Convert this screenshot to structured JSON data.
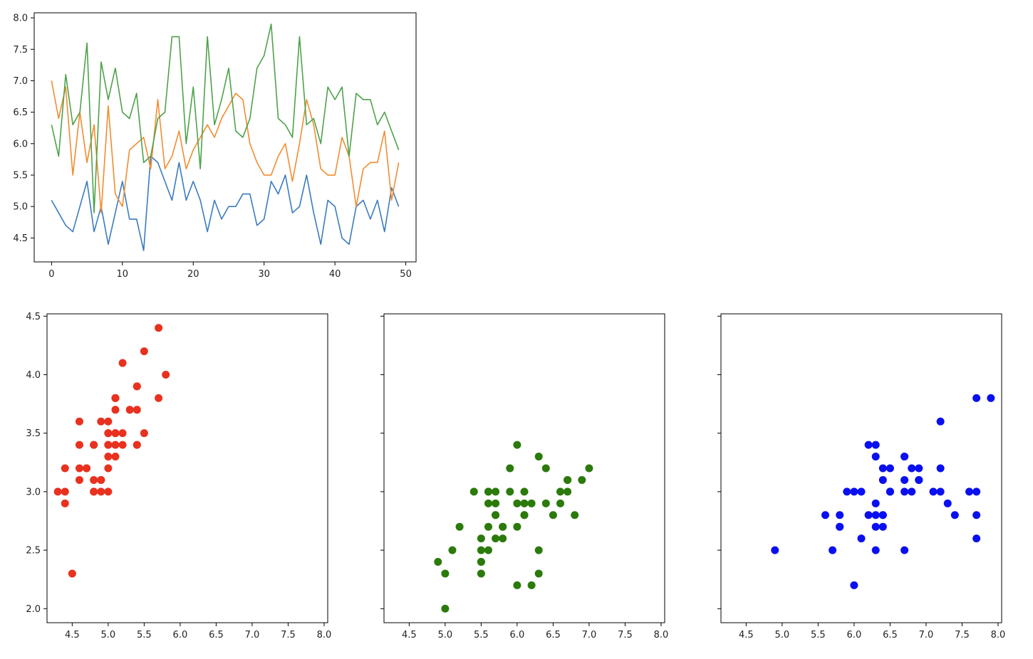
{
  "chart_data": [
    {
      "type": "line",
      "x": [
        0,
        1,
        2,
        3,
        4,
        5,
        6,
        7,
        8,
        9,
        10,
        11,
        12,
        13,
        14,
        15,
        16,
        17,
        18,
        19,
        20,
        21,
        22,
        23,
        24,
        25,
        26,
        27,
        28,
        29,
        30,
        31,
        32,
        33,
        34,
        35,
        36,
        37,
        38,
        39,
        40,
        41,
        42,
        43,
        44,
        45,
        46,
        47,
        48,
        49
      ],
      "series": [
        {
          "color": "#3a7bbf",
          "values": [
            5.1,
            4.9,
            4.7,
            4.6,
            5.0,
            5.4,
            4.6,
            5.0,
            4.4,
            4.9,
            5.4,
            4.8,
            4.8,
            4.3,
            5.8,
            5.7,
            5.4,
            5.1,
            5.7,
            5.1,
            5.4,
            5.1,
            4.6,
            5.1,
            4.8,
            5.0,
            5.0,
            5.2,
            5.2,
            4.7,
            4.8,
            5.4,
            5.2,
            5.5,
            4.9,
            5.0,
            5.5,
            4.9,
            4.4,
            5.1,
            5.0,
            4.5,
            4.4,
            5.0,
            5.1,
            4.8,
            5.1,
            4.6,
            5.3,
            5.0
          ]
        },
        {
          "color": "#f28c30",
          "values": [
            7.0,
            6.4,
            6.9,
            5.5,
            6.5,
            5.7,
            6.3,
            4.9,
            6.6,
            5.2,
            5.0,
            5.9,
            6.0,
            6.1,
            5.6,
            6.7,
            5.6,
            5.8,
            6.2,
            5.6,
            5.9,
            6.1,
            6.3,
            6.1,
            6.4,
            6.6,
            6.8,
            6.7,
            6.0,
            5.7,
            5.5,
            5.5,
            5.8,
            6.0,
            5.4,
            6.0,
            6.7,
            6.3,
            5.6,
            5.5,
            5.5,
            6.1,
            5.8,
            5.0,
            5.6,
            5.7,
            5.7,
            6.2,
            5.1,
            5.7
          ]
        },
        {
          "color": "#4ea24a",
          "values": [
            6.3,
            5.8,
            7.1,
            6.3,
            6.5,
            7.6,
            4.9,
            7.3,
            6.7,
            7.2,
            6.5,
            6.4,
            6.8,
            5.7,
            5.8,
            6.4,
            6.5,
            7.7,
            7.7,
            6.0,
            6.9,
            5.6,
            7.7,
            6.3,
            6.7,
            7.2,
            6.2,
            6.1,
            6.4,
            7.2,
            7.4,
            7.9,
            6.4,
            6.3,
            6.1,
            7.7,
            6.3,
            6.4,
            6.0,
            6.9,
            6.7,
            6.9,
            5.8,
            6.8,
            6.7,
            6.7,
            6.3,
            6.5,
            6.2,
            5.9
          ]
        }
      ],
      "xlim": [
        -2.45,
        51.45
      ],
      "ylim": [
        4.12,
        8.08
      ],
      "xticks": [
        "0",
        "10",
        "20",
        "30",
        "40",
        "50"
      ],
      "xtick_values": [
        0,
        10,
        20,
        30,
        40,
        50
      ],
      "yticks": [
        "4.5",
        "5.0",
        "5.5",
        "6.0",
        "6.5",
        "7.0",
        "7.5",
        "8.0"
      ],
      "ytick_values": [
        4.5,
        5.0,
        5.5,
        6.0,
        6.5,
        7.0,
        7.5,
        8.0
      ]
    },
    {
      "type": "scatter",
      "color": "#e8311f",
      "x": [
        5.1,
        4.9,
        4.7,
        4.6,
        5.0,
        5.4,
        4.6,
        5.0,
        4.4,
        4.9,
        5.4,
        4.8,
        4.8,
        4.3,
        5.8,
        5.7,
        5.4,
        5.1,
        5.7,
        5.1,
        5.4,
        5.1,
        4.6,
        5.1,
        4.8,
        5.0,
        5.0,
        5.2,
        5.2,
        4.7,
        4.8,
        5.4,
        5.2,
        5.5,
        4.9,
        5.0,
        5.5,
        4.9,
        4.4,
        5.1,
        5.0,
        4.5,
        4.4,
        5.0,
        5.1,
        4.8,
        5.1,
        4.6,
        5.3,
        5.0
      ],
      "y": [
        3.5,
        3.0,
        3.2,
        3.1,
        3.6,
        3.9,
        3.4,
        3.4,
        2.9,
        3.1,
        3.7,
        3.4,
        3.0,
        3.0,
        4.0,
        4.4,
        3.9,
        3.5,
        3.8,
        3.8,
        3.4,
        3.7,
        3.6,
        3.3,
        3.4,
        3.0,
        3.4,
        3.5,
        3.4,
        3.2,
        3.1,
        3.4,
        4.1,
        4.2,
        3.1,
        3.2,
        3.5,
        3.6,
        3.0,
        3.4,
        3.5,
        2.3,
        3.2,
        3.5,
        3.8,
        3.0,
        3.8,
        3.2,
        3.7,
        3.3
      ],
      "xlim": [
        4.15,
        8.05
      ],
      "ylim": [
        1.88,
        4.52
      ],
      "xticks": [
        "4.5",
        "5.0",
        "5.5",
        "6.0",
        "6.5",
        "7.0",
        "7.5",
        "8.0"
      ],
      "xtick_values": [
        4.5,
        5.0,
        5.5,
        6.0,
        6.5,
        7.0,
        7.5,
        8.0
      ],
      "yticks": [
        "2.0",
        "2.5",
        "3.0",
        "3.5",
        "4.0",
        "4.5"
      ],
      "ytick_values": [
        2.0,
        2.5,
        3.0,
        3.5,
        4.0,
        4.5
      ]
    },
    {
      "type": "scatter",
      "color": "#2b7a0b",
      "x": [
        7.0,
        6.4,
        6.9,
        5.5,
        6.5,
        5.7,
        6.3,
        4.9,
        6.6,
        5.2,
        5.0,
        5.9,
        6.0,
        6.1,
        5.6,
        6.7,
        5.6,
        5.8,
        6.2,
        5.6,
        5.9,
        6.1,
        6.3,
        6.1,
        6.4,
        6.6,
        6.8,
        6.7,
        6.0,
        5.7,
        5.5,
        5.5,
        5.8,
        6.0,
        5.4,
        6.0,
        6.7,
        6.3,
        5.6,
        5.5,
        5.5,
        6.1,
        5.8,
        5.0,
        5.6,
        5.7,
        5.7,
        6.2,
        5.1,
        5.7
      ],
      "y": [
        3.2,
        3.2,
        3.1,
        2.3,
        2.8,
        2.8,
        3.3,
        2.4,
        2.9,
        2.7,
        2.0,
        3.0,
        2.2,
        2.9,
        2.9,
        3.1,
        3.0,
        2.7,
        2.2,
        2.5,
        3.2,
        2.8,
        2.5,
        2.8,
        2.9,
        3.0,
        2.8,
        3.0,
        2.9,
        2.6,
        2.4,
        2.4,
        2.7,
        2.7,
        3.0,
        3.4,
        3.1,
        2.3,
        3.0,
        2.5,
        2.6,
        3.0,
        2.6,
        2.3,
        2.7,
        3.0,
        2.9,
        2.9,
        2.5,
        2.8
      ],
      "xlim": [
        4.15,
        8.05
      ],
      "ylim": [
        1.88,
        4.52
      ],
      "xticks": [
        "4.5",
        "5.0",
        "5.5",
        "6.0",
        "6.5",
        "7.0",
        "7.5",
        "8.0"
      ],
      "xtick_values": [
        4.5,
        5.0,
        5.5,
        6.0,
        6.5,
        7.0,
        7.5,
        8.0
      ],
      "ytick_values": [
        2.0,
        2.5,
        3.0,
        3.5,
        4.0,
        4.5
      ]
    },
    {
      "type": "scatter",
      "color": "#0a0ff0",
      "x": [
        6.3,
        5.8,
        7.1,
        6.3,
        6.5,
        7.6,
        4.9,
        7.3,
        6.7,
        7.2,
        6.5,
        6.4,
        6.8,
        5.7,
        5.8,
        6.4,
        6.5,
        7.7,
        7.7,
        6.0,
        6.9,
        5.6,
        7.7,
        6.3,
        6.7,
        7.2,
        6.2,
        6.1,
        6.4,
        7.2,
        7.4,
        7.9,
        6.4,
        6.3,
        6.1,
        7.7,
        6.3,
        6.4,
        6.0,
        6.9,
        6.7,
        6.9,
        5.8,
        6.8,
        6.7,
        6.7,
        6.3,
        6.5,
        6.2,
        5.9
      ],
      "y": [
        3.3,
        2.7,
        3.0,
        2.9,
        3.0,
        3.0,
        2.5,
        2.9,
        2.5,
        3.6,
        3.2,
        2.7,
        3.0,
        2.5,
        2.8,
        3.2,
        3.0,
        3.8,
        2.6,
        2.2,
        3.2,
        2.8,
        2.8,
        2.7,
        3.3,
        3.2,
        2.8,
        3.0,
        2.8,
        3.0,
        2.8,
        3.8,
        2.8,
        2.8,
        2.6,
        3.0,
        3.4,
        3.1,
        3.0,
        3.1,
        3.1,
        3.1,
        2.7,
        3.2,
        3.3,
        3.0,
        2.5,
        3.0,
        3.4,
        3.0
      ],
      "xlim": [
        4.15,
        8.05
      ],
      "ylim": [
        1.88,
        4.52
      ],
      "xticks": [
        "4.5",
        "5.0",
        "5.5",
        "6.0",
        "6.5",
        "7.0",
        "7.5",
        "8.0"
      ],
      "xtick_values": [
        4.5,
        5.0,
        5.5,
        6.0,
        6.5,
        7.0,
        7.5,
        8.0
      ],
      "ytick_values": [
        2.0,
        2.5,
        3.0,
        3.5,
        4.0,
        4.5
      ]
    }
  ]
}
